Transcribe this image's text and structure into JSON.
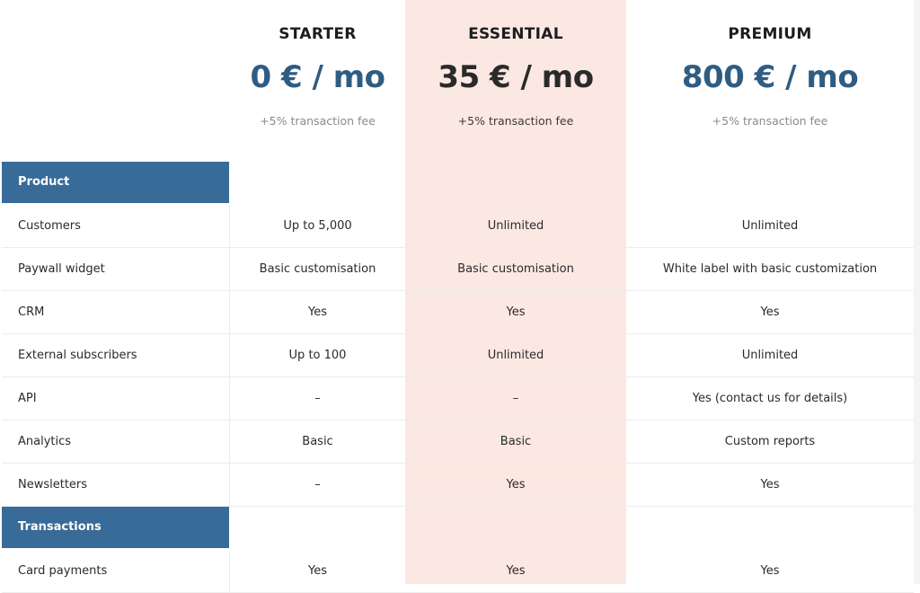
{
  "plans": [
    {
      "name": "STARTER",
      "price": "0 € / mo",
      "fee": "+5% transaction fee"
    },
    {
      "name": "ESSENTIAL",
      "price": "35 € / mo",
      "fee": "+5% transaction fee"
    },
    {
      "name": "PREMIUM",
      "price": "800 € / mo",
      "fee": "+5% transaction fee"
    }
  ],
  "colors": {
    "accent": "#386b97",
    "price_blue": "#2f5c82",
    "highlight": "#fce8e3"
  },
  "sections": {
    "product": "Product",
    "transactions": "Transactions"
  },
  "rows": [
    {
      "label": "Customers",
      "starter": "Up to 5,000",
      "essential": "Unlimited",
      "premium": "Unlimited"
    },
    {
      "label": "Paywall widget",
      "starter": "Basic customisation",
      "essential": "Basic customisation",
      "premium": "White label with basic customization"
    },
    {
      "label": "CRM",
      "starter": "Yes",
      "essential": "Yes",
      "premium": "Yes"
    },
    {
      "label": "External subscribers",
      "starter": "Up to 100",
      "essential": "Unlimited",
      "premium": "Unlimited"
    },
    {
      "label": "API",
      "starter": "–",
      "essential": "–",
      "premium": "Yes (contact us for details)"
    },
    {
      "label": "Analytics",
      "starter": "Basic",
      "essential": "Basic",
      "premium": "Custom reports"
    },
    {
      "label": "Newsletters",
      "starter": "–",
      "essential": "Yes",
      "premium": "Yes"
    },
    {
      "label": "Card payments",
      "starter": "Yes",
      "essential": "Yes",
      "premium": "Yes"
    }
  ]
}
